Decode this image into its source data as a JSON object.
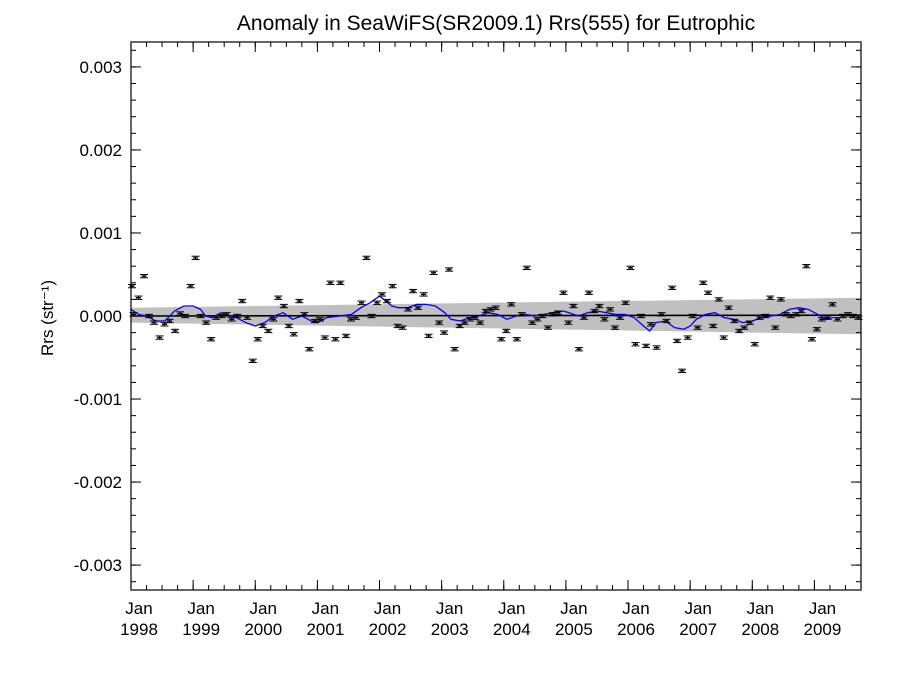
{
  "chart_data": {
    "type": "scatter",
    "title": "Anomaly in SeaWiFS(SR2009.1) Rrs(555) for Eutrophic",
    "ylabel": "Rrs (str⁻¹)",
    "xlabel": "",
    "xlim": [
      1998.0,
      2009.75
    ],
    "ylim": [
      -0.0033,
      0.0033
    ],
    "y_ticks": [
      -0.003,
      -0.002,
      -0.001,
      0.0,
      0.001,
      0.002,
      0.003
    ],
    "y_tick_labels": [
      "-0.003",
      "-0.002",
      "-0.001",
      "0.000",
      "0.001",
      "0.002",
      "0.003"
    ],
    "x_ticks": [
      1998,
      1999,
      2000,
      2001,
      2002,
      2003,
      2004,
      2005,
      2006,
      2007,
      2008,
      2009
    ],
    "x_tick_labels": [
      {
        "month": "Jan",
        "year": "1998"
      },
      {
        "month": "Jan",
        "year": "1999"
      },
      {
        "month": "Jan",
        "year": "2000"
      },
      {
        "month": "Jan",
        "year": "2001"
      },
      {
        "month": "Jan",
        "year": "2002"
      },
      {
        "month": "Jan",
        "year": "2003"
      },
      {
        "month": "Jan",
        "year": "2004"
      },
      {
        "month": "Jan",
        "year": "2005"
      },
      {
        "month": "Jan",
        "year": "2006"
      },
      {
        "month": "Jan",
        "year": "2007"
      },
      {
        "month": "Jan",
        "year": "2008"
      },
      {
        "month": "Jan",
        "year": "2009"
      }
    ],
    "grid": false,
    "legend": "none",
    "series": [
      {
        "kind": "monthly-anomaly-points-with-error-bars",
        "color": "#000000",
        "error": 2e-05,
        "points": [
          [
            1997.96,
            0.00036
          ],
          [
            1998.04,
            2e-05
          ],
          [
            1998.12,
            0.00022
          ],
          [
            1998.21,
            0.00048
          ],
          [
            1998.29,
            0.0
          ],
          [
            1998.37,
            -8e-05
          ],
          [
            1998.46,
            -0.00026
          ],
          [
            1998.54,
            -0.0001
          ],
          [
            1998.62,
            -6e-05
          ],
          [
            1998.71,
            -0.00018
          ],
          [
            1998.79,
            3e-05
          ],
          [
            1998.87,
            0.0
          ],
          [
            1998.96,
            0.00036
          ],
          [
            1999.04,
            0.0007
          ],
          [
            1999.12,
            0.0
          ],
          [
            1999.21,
            -8e-05
          ],
          [
            1999.29,
            -0.00028
          ],
          [
            1999.37,
            -2e-05
          ],
          [
            1999.46,
            0.0
          ],
          [
            1999.54,
            2e-05
          ],
          [
            1999.62,
            -4e-05
          ],
          [
            1999.71,
            0.0
          ],
          [
            1999.79,
            0.00018
          ],
          [
            1999.87,
            -2e-05
          ],
          [
            1999.96,
            -0.00054
          ],
          [
            2000.04,
            -0.00028
          ],
          [
            2000.12,
            -0.00012
          ],
          [
            2000.21,
            -0.00018
          ],
          [
            2000.29,
            -4e-05
          ],
          [
            2000.37,
            0.00022
          ],
          [
            2000.46,
            0.00012
          ],
          [
            2000.54,
            -0.00012
          ],
          [
            2000.62,
            -0.00022
          ],
          [
            2000.71,
            0.00018
          ],
          [
            2000.79,
            2e-05
          ],
          [
            2000.87,
            -0.0004
          ],
          [
            2000.96,
            -6e-05
          ],
          [
            2001.04,
            -4e-05
          ],
          [
            2001.12,
            -0.00026
          ],
          [
            2001.21,
            0.0004
          ],
          [
            2001.29,
            -0.00028
          ],
          [
            2001.37,
            0.0004
          ],
          [
            2001.46,
            -0.00024
          ],
          [
            2001.54,
            -4e-05
          ],
          [
            2001.62,
            -2e-05
          ],
          [
            2001.71,
            0.00016
          ],
          [
            2001.79,
            0.0007
          ],
          [
            2001.87,
            0.0
          ],
          [
            2001.96,
            0.00016
          ],
          [
            2002.04,
            0.00026
          ],
          [
            2002.12,
            0.00018
          ],
          [
            2002.21,
            0.00036
          ],
          [
            2002.29,
            -0.00012
          ],
          [
            2002.37,
            -0.00014
          ],
          [
            2002.46,
            8e-05
          ],
          [
            2002.54,
            0.0003
          ],
          [
            2002.62,
            0.0001
          ],
          [
            2002.71,
            0.00026
          ],
          [
            2002.79,
            -0.00024
          ],
          [
            2002.87,
            0.00052
          ],
          [
            2002.96,
            -8e-05
          ],
          [
            2003.04,
            -0.0002
          ],
          [
            2003.12,
            0.00056
          ],
          [
            2003.21,
            -0.0004
          ],
          [
            2003.29,
            -0.00012
          ],
          [
            2003.37,
            -8e-05
          ],
          [
            2003.46,
            -4e-05
          ],
          [
            2003.54,
            -2e-05
          ],
          [
            2003.62,
            -8e-05
          ],
          [
            2003.71,
            6e-05
          ],
          [
            2003.79,
            8e-05
          ],
          [
            2003.87,
            0.0001
          ],
          [
            2003.96,
            -0.00028
          ],
          [
            2004.04,
            -0.00018
          ],
          [
            2004.12,
            0.00014
          ],
          [
            2004.21,
            -0.00028
          ],
          [
            2004.29,
            2e-05
          ],
          [
            2004.37,
            0.00058
          ],
          [
            2004.46,
            -8e-05
          ],
          [
            2004.54,
            -4e-05
          ],
          [
            2004.62,
            0.0
          ],
          [
            2004.71,
            -0.00014
          ],
          [
            2004.79,
            2e-05
          ],
          [
            2004.87,
            4e-05
          ],
          [
            2004.96,
            0.00028
          ],
          [
            2005.04,
            -8e-05
          ],
          [
            2005.12,
            0.00012
          ],
          [
            2005.21,
            -0.0004
          ],
          [
            2005.29,
            -2e-05
          ],
          [
            2005.37,
            0.00028
          ],
          [
            2005.46,
            6e-05
          ],
          [
            2005.54,
            0.00012
          ],
          [
            2005.62,
            -4e-05
          ],
          [
            2005.71,
            8e-05
          ],
          [
            2005.79,
            -0.00014
          ],
          [
            2005.87,
            -2e-05
          ],
          [
            2005.96,
            0.00016
          ],
          [
            2006.04,
            0.00058
          ],
          [
            2006.12,
            -0.00034
          ],
          [
            2006.21,
            0.0
          ],
          [
            2006.29,
            -0.00036
          ],
          [
            2006.37,
            -0.0001
          ],
          [
            2006.46,
            -0.00038
          ],
          [
            2006.54,
            2e-05
          ],
          [
            2006.62,
            -6e-05
          ],
          [
            2006.71,
            0.00034
          ],
          [
            2006.79,
            -0.0003
          ],
          [
            2006.87,
            -0.00066
          ],
          [
            2006.96,
            -0.00026
          ],
          [
            2007.04,
            0.0
          ],
          [
            2007.12,
            -0.00014
          ],
          [
            2007.21,
            0.0004
          ],
          [
            2007.29,
            0.00028
          ],
          [
            2007.37,
            -0.00012
          ],
          [
            2007.46,
            0.0002
          ],
          [
            2007.54,
            -0.00026
          ],
          [
            2007.62,
            0.0001
          ],
          [
            2007.71,
            -6e-05
          ],
          [
            2007.79,
            -0.00018
          ],
          [
            2007.87,
            -0.00014
          ],
          [
            2007.96,
            -8e-05
          ],
          [
            2008.04,
            -0.00034
          ],
          [
            2008.12,
            -2e-05
          ],
          [
            2008.21,
            0.0
          ],
          [
            2008.29,
            0.00022
          ],
          [
            2008.37,
            -0.00014
          ],
          [
            2008.46,
            0.0002
          ],
          [
            2008.54,
            2e-05
          ],
          [
            2008.62,
            0.0
          ],
          [
            2008.71,
            2e-05
          ],
          [
            2008.79,
            6e-05
          ],
          [
            2008.87,
            0.0006
          ],
          [
            2008.96,
            -0.00028
          ],
          [
            2009.04,
            -0.00016
          ],
          [
            2009.12,
            -4e-05
          ],
          [
            2009.21,
            -2e-05
          ],
          [
            2009.29,
            0.00014
          ],
          [
            2009.37,
            -4e-05
          ],
          [
            2009.46,
            0.0
          ],
          [
            2009.54,
            2e-05
          ],
          [
            2009.62,
            0.0
          ],
          [
            2009.71,
            -2e-05
          ]
        ]
      },
      {
        "kind": "running-mean-line",
        "color": "#0000ff",
        "points": [
          [
            1998.0,
            8e-05
          ],
          [
            1998.12,
            2e-05
          ],
          [
            1998.25,
            0.0
          ],
          [
            1998.4,
            -6e-05
          ],
          [
            1998.55,
            -6e-05
          ],
          [
            1998.7,
            6e-05
          ],
          [
            1998.85,
            0.00012
          ],
          [
            1999.0,
            0.00012
          ],
          [
            1999.12,
            8e-05
          ],
          [
            1999.2,
            0.0
          ],
          [
            1999.3,
            -2e-05
          ],
          [
            1999.45,
            4e-05
          ],
          [
            1999.6,
            0.0
          ],
          [
            1999.7,
            -2e-05
          ],
          [
            1999.85,
            -8e-05
          ],
          [
            2000.0,
            -0.00012
          ],
          [
            2000.15,
            -8e-05
          ],
          [
            2000.3,
            0.0
          ],
          [
            2000.45,
            4e-05
          ],
          [
            2000.6,
            -4e-05
          ],
          [
            2000.75,
            0.0
          ],
          [
            2000.9,
            -6e-05
          ],
          [
            2001.0,
            -8e-05
          ],
          [
            2001.15,
            -2e-05
          ],
          [
            2001.35,
            0.0
          ],
          [
            2001.55,
            2e-05
          ],
          [
            2001.7,
            0.0001
          ],
          [
            2001.85,
            0.00016
          ],
          [
            2002.0,
            0.00024
          ],
          [
            2002.1,
            0.00018
          ],
          [
            2002.2,
            0.00012
          ],
          [
            2002.3,
            0.0001
          ],
          [
            2002.45,
            0.0001
          ],
          [
            2002.6,
            0.00014
          ],
          [
            2002.75,
            0.00014
          ],
          [
            2002.9,
            0.00012
          ],
          [
            2003.05,
            4e-05
          ],
          [
            2003.15,
            -4e-05
          ],
          [
            2003.3,
            -6e-05
          ],
          [
            2003.45,
            -2e-05
          ],
          [
            2003.6,
            0.0
          ],
          [
            2003.75,
            4e-05
          ],
          [
            2003.9,
            2e-05
          ],
          [
            2004.05,
            -4e-05
          ],
          [
            2004.2,
            0.0
          ],
          [
            2004.35,
            2e-05
          ],
          [
            2004.5,
            0.0
          ],
          [
            2004.65,
            2e-05
          ],
          [
            2004.8,
            4e-05
          ],
          [
            2004.95,
            6e-05
          ],
          [
            2005.05,
            4e-05
          ],
          [
            2005.2,
            0.0
          ],
          [
            2005.35,
            4e-05
          ],
          [
            2005.5,
            6e-05
          ],
          [
            2005.65,
            4e-05
          ],
          [
            2005.8,
            2e-05
          ],
          [
            2005.95,
            2e-05
          ],
          [
            2006.1,
            -2e-05
          ],
          [
            2006.25,
            -0.00012
          ],
          [
            2006.35,
            -0.00018
          ],
          [
            2006.45,
            -8e-05
          ],
          [
            2006.6,
            -6e-05
          ],
          [
            2006.75,
            -0.00014
          ],
          [
            2006.9,
            -0.00016
          ],
          [
            2007.0,
            -0.00012
          ],
          [
            2007.1,
            -4e-05
          ],
          [
            2007.25,
            2e-05
          ],
          [
            2007.4,
            4e-05
          ],
          [
            2007.55,
            -2e-05
          ],
          [
            2007.7,
            -4e-05
          ],
          [
            2007.85,
            -8e-05
          ],
          [
            2008.0,
            -6e-05
          ],
          [
            2008.15,
            -2e-05
          ],
          [
            2008.3,
            0.0
          ],
          [
            2008.45,
            2e-05
          ],
          [
            2008.6,
            8e-05
          ],
          [
            2008.75,
            0.0001
          ],
          [
            2008.9,
            8e-05
          ],
          [
            2009.0,
            4e-05
          ],
          [
            2009.1,
            0.0
          ],
          [
            2009.2,
            -4e-05
          ],
          [
            2009.3,
            -2e-05
          ]
        ]
      },
      {
        "kind": "uncertainty-band",
        "color": "#c0c0c0",
        "upper": [
          [
            1998.0,
            0.0001
          ],
          [
            2009.75,
            0.00022
          ]
        ],
        "lower": [
          [
            1998.0,
            -8e-05
          ],
          [
            2009.75,
            -0.00022
          ]
        ]
      },
      {
        "kind": "zero-reference-line",
        "color": "#000000",
        "points": [
          [
            1998.0,
            0.0
          ],
          [
            2009.75,
            1e-05
          ]
        ]
      }
    ]
  }
}
